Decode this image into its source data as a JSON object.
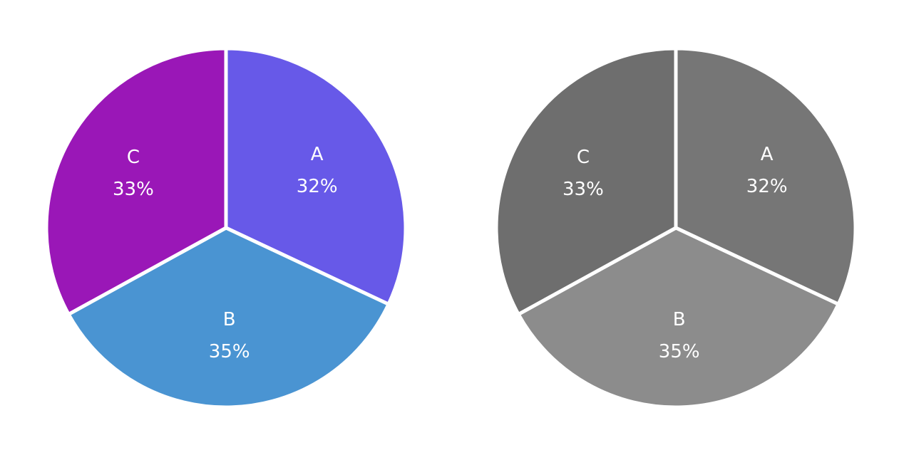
{
  "chart_data": [
    {
      "type": "pie",
      "title": "",
      "slices": [
        {
          "label": "A",
          "value": 32,
          "display": "32%",
          "color": "#6759E8"
        },
        {
          "label": "B",
          "value": 35,
          "display": "35%",
          "color": "#4A94D2"
        },
        {
          "label": "C",
          "value": 33,
          "display": "33%",
          "color": "#9A17B7"
        }
      ],
      "start_angle_deg": 0,
      "direction": "clockwise"
    },
    {
      "type": "pie",
      "title": "",
      "slices": [
        {
          "label": "A",
          "value": 32,
          "display": "32%",
          "color": "#767676"
        },
        {
          "label": "B",
          "value": 35,
          "display": "35%",
          "color": "#8C8C8C"
        },
        {
          "label": "C",
          "value": 33,
          "display": "33%",
          "color": "#6E6E6E"
        }
      ],
      "start_angle_deg": 0,
      "direction": "clockwise"
    }
  ]
}
